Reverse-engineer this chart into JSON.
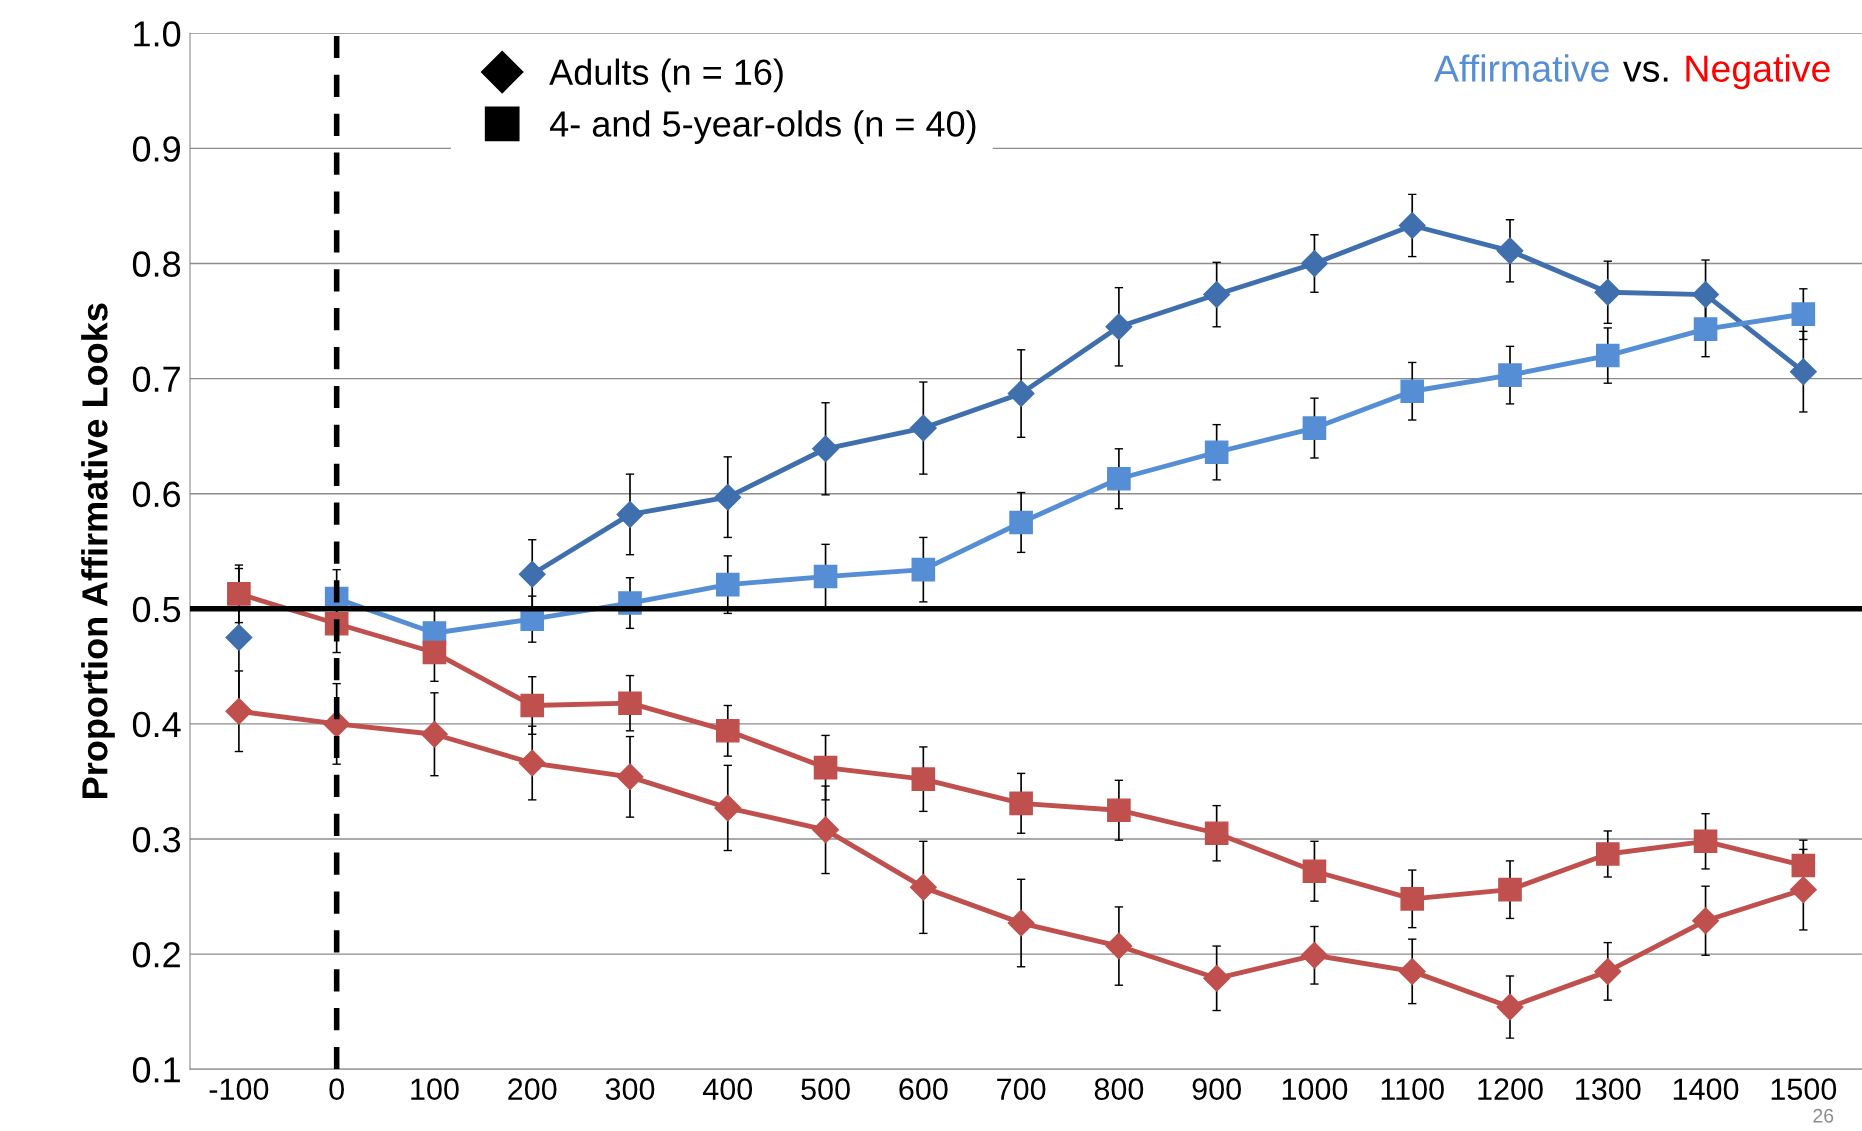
{
  "chart_data": {
    "type": "line",
    "ylabel": "Proportion Affirmative Looks",
    "x": [
      -100,
      0,
      100,
      200,
      300,
      400,
      500,
      600,
      700,
      800,
      900,
      1000,
      1100,
      1200,
      1300,
      1400,
      1500
    ],
    "series": [
      {
        "color": "#3f6fad",
        "marker": "diamond",
        "values": [
          0.475,
          null,
          null,
          0.53,
          0.582,
          0.597,
          0.639,
          0.657,
          0.687,
          0.745,
          0.773,
          0.8,
          0.833,
          0.811,
          0.775,
          0.773,
          0.706
        ],
        "errors": [
          0.06,
          null,
          null,
          0.03,
          0.035,
          0.035,
          0.04,
          0.04,
          0.038,
          0.034,
          0.028,
          0.025,
          0.027,
          0.027,
          0.027,
          0.03,
          0.035
        ]
      },
      {
        "color": "#558ed5",
        "marker": "square",
        "values": [
          null,
          0.509,
          0.479,
          0.491,
          0.505,
          0.521,
          0.528,
          0.534,
          0.575,
          0.613,
          0.636,
          0.657,
          0.689,
          0.703,
          0.72,
          0.743,
          0.756
        ],
        "errors": [
          null,
          0.025,
          0.02,
          0.02,
          0.022,
          0.025,
          0.028,
          0.028,
          0.026,
          0.026,
          0.024,
          0.026,
          0.025,
          0.025,
          0.024,
          0.024,
          0.022
        ]
      },
      {
        "color": "#c0504d",
        "marker": "square",
        "values": [
          0.513,
          0.487,
          0.462,
          0.416,
          0.418,
          0.394,
          0.362,
          0.352,
          0.331,
          0.325,
          0.305,
          0.272,
          0.248,
          0.256,
          0.287,
          0.298,
          0.277
        ],
        "errors": [
          0.025,
          0.025,
          0.025,
          0.025,
          0.024,
          0.022,
          0.028,
          0.028,
          0.026,
          0.026,
          0.024,
          0.026,
          0.025,
          0.025,
          0.02,
          0.024,
          0.022
        ]
      },
      {
        "color": "#c0504d",
        "marker": "diamond",
        "values": [
          0.411,
          0.4,
          0.391,
          0.366,
          0.354,
          0.327,
          0.308,
          0.258,
          0.227,
          0.207,
          0.179,
          0.199,
          0.185,
          0.154,
          0.185,
          0.229,
          0.256
        ],
        "errors": [
          0.035,
          0.035,
          0.036,
          0.032,
          0.035,
          0.037,
          0.038,
          0.04,
          0.038,
          0.034,
          0.028,
          0.025,
          0.028,
          0.027,
          0.025,
          0.03,
          0.035
        ]
      },
      {
        "name": "Adults (n = 16)",
        "color": "#000000",
        "marker": "diamond",
        "values": [
          null,
          null,
          null,
          null,
          null,
          null,
          null,
          null,
          null,
          null,
          null,
          null,
          null,
          null,
          null,
          null,
          null
        ]
      },
      {
        "name": "4- and 5-year-olds (n = 40)",
        "color": "#000000",
        "marker": "square",
        "values": [
          null,
          null,
          null,
          null,
          null,
          null,
          null,
          null,
          null,
          null,
          null,
          null,
          null,
          null,
          null,
          null,
          null
        ]
      }
    ],
    "xlim": [
      -150,
      1560
    ],
    "ylim": [
      0.1,
      1.0
    ],
    "xticks": [
      -100,
      0,
      100,
      200,
      300,
      400,
      500,
      600,
      700,
      800,
      900,
      1000,
      1100,
      1200,
      1300,
      1400,
      1500
    ],
    "yticks": [
      {
        "value": 0.1,
        "label": "0.1"
      },
      {
        "value": 0.2,
        "label": "0.2"
      },
      {
        "value": 0.3,
        "label": "0.3"
      },
      {
        "value": 0.4,
        "label": "0.4"
      },
      {
        "value": 0.5,
        "label": "0.5"
      },
      {
        "value": 0.6,
        "label": "0.6"
      },
      {
        "value": 0.7,
        "label": "0.7"
      },
      {
        "value": 0.8,
        "label": "0.8"
      },
      {
        "value": 0.9,
        "label": "0.9"
      },
      {
        "value": 1.0,
        "label": "1.0"
      }
    ],
    "grid": "y",
    "legend": "top left",
    "line_style": "solid",
    "ref_lines": [
      {
        "axis": "y",
        "value": 0.5,
        "color": "#000000",
        "line_style": "solid"
      },
      {
        "axis": "x",
        "value": 0,
        "color": "#000000",
        "line_style": "dashed"
      }
    ],
    "annotations": [
      "Affirmative",
      "vs.",
      "Negative",
      "26"
    ]
  }
}
